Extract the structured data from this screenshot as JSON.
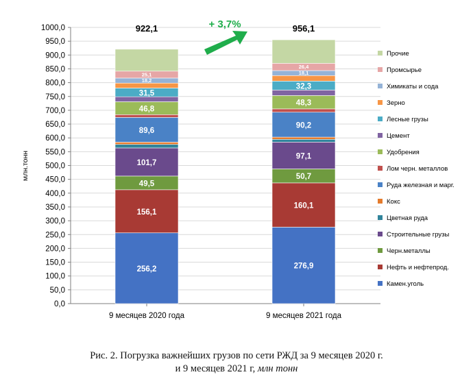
{
  "chart_data": {
    "type": "bar",
    "stacked": true,
    "ylabel": "млн.тонн",
    "ylim": [
      0,
      1000
    ],
    "ytick_step": 50,
    "ytick_labels": [
      "0,0",
      "50,0",
      "100,0",
      "150,0",
      "200,0",
      "250,0",
      "300,0",
      "350,0",
      "400,0",
      "450,0",
      "500,0",
      "550,0",
      "600,0",
      "650,0",
      "700,0",
      "750,0",
      "800,0",
      "850,0",
      "900,0",
      "950,0",
      "1000,0"
    ],
    "categories": [
      "9 месяцев 2020 года",
      "9 месяцев 2021 года"
    ],
    "totals": [
      "922,1",
      "956,1"
    ],
    "total_values": [
      922.1,
      956.1
    ],
    "growth_label": "+ 3,7%",
    "legend_position": "right",
    "series": [
      {
        "name": "Камен.уголь",
        "color": "#4472c4",
        "values": [
          256.2,
          276.9
        ],
        "labels": [
          "256,2",
          "276,9"
        ]
      },
      {
        "name": "Нефть и нефтепрод.",
        "color": "#a83a34",
        "values": [
          156.1,
          160.1
        ],
        "labels": [
          "156,1",
          "160,1"
        ]
      },
      {
        "name": "Черн.металлы",
        "color": "#6f9a3f",
        "values": [
          49.5,
          50.7
        ],
        "labels": [
          "49,5",
          "50,7"
        ]
      },
      {
        "name": "Строительные грузы",
        "color": "#6a4a8c",
        "values": [
          101.7,
          97.1
        ],
        "labels": [
          "101,7",
          "97,1"
        ]
      },
      {
        "name": "Цветная руда",
        "color": "#31849b",
        "values": [
          13,
          10
        ],
        "labels": [
          "",
          ""
        ]
      },
      {
        "name": "Кокс",
        "color": "#e47b2c",
        "values": [
          8,
          8
        ],
        "labels": [
          "",
          ""
        ]
      },
      {
        "name": "Руда железная и марг.",
        "color": "#4a82c6",
        "values": [
          89.6,
          90.2
        ],
        "labels": [
          "89,6",
          "90,2"
        ]
      },
      {
        "name": "Лом черн. металлов",
        "color": "#c0504d",
        "values": [
          10,
          12
        ],
        "labels": [
          "",
          ""
        ]
      },
      {
        "name": "Удобрения",
        "color": "#9bbb59",
        "values": [
          46.8,
          48.3
        ],
        "labels": [
          "46,8",
          "48,3"
        ]
      },
      {
        "name": "Цемент",
        "color": "#8064a2",
        "values": [
          18,
          20
        ],
        "labels": [
          "",
          ""
        ]
      },
      {
        "name": "Лесные грузы",
        "color": "#4bacc6",
        "values": [
          31.5,
          32.3
        ],
        "labels": [
          "31,5",
          "32,3"
        ]
      },
      {
        "name": "Зерно",
        "color": "#f79646",
        "values": [
          18,
          20
        ],
        "labels": [
          "",
          ""
        ]
      },
      {
        "name": "Химикаты и сода",
        "color": "#95b3d7",
        "values": [
          18.2,
          18.1
        ],
        "labels": [
          "18,2",
          "18,1"
        ]
      },
      {
        "name": "Промсырье",
        "color": "#e6a6a6",
        "values": [
          25.1,
          26.4
        ],
        "labels": [
          "25,1",
          "26,4"
        ]
      },
      {
        "name": "Прочие",
        "color": "#c4d7a4",
        "values": [
          79.4,
          85.1
        ],
        "labels": [
          "",
          ""
        ]
      }
    ]
  },
  "caption": {
    "line1": "Рис. 2. Погрузка важнейших грузов по сети РЖД за 9 месяцев 2020 г.",
    "line2_plain": "и 9 месяцев 2021 г, ",
    "line2_italic": "млн тонн"
  },
  "colors": {
    "arrow": "#1fad4b",
    "growth_text": "#1fad4b",
    "grid": "#d9d9d9",
    "axis": "#7f7f7f"
  }
}
